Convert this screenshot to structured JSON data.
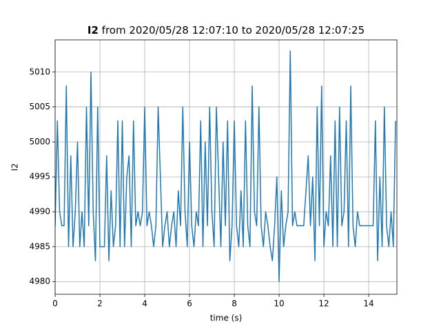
{
  "chart_data": {
    "type": "line",
    "title": {
      "bold": "I2",
      "rest": "from 2020/05/28 12:07:10 to 2020/05/28 12:07:25"
    },
    "xlabel": "time (s)",
    "ylabel": "I2",
    "x": [
      0.0,
      0.1,
      0.2,
      0.3,
      0.4,
      0.5,
      0.6,
      0.7,
      0.8,
      0.9,
      1.0,
      1.1,
      1.2,
      1.3,
      1.4,
      1.5,
      1.6,
      1.7,
      1.8,
      1.9,
      2.0,
      2.1,
      2.2,
      2.3,
      2.4,
      2.5,
      2.6,
      2.7,
      2.8,
      2.9,
      3.0,
      3.1,
      3.2,
      3.3,
      3.4,
      3.5,
      3.6,
      3.7,
      3.8,
      3.9,
      4.0,
      4.1,
      4.2,
      4.3,
      4.4,
      4.5,
      4.6,
      4.7,
      4.8,
      4.9,
      5.0,
      5.1,
      5.2,
      5.3,
      5.4,
      5.5,
      5.6,
      5.7,
      5.8,
      5.9,
      6.0,
      6.1,
      6.2,
      6.3,
      6.4,
      6.5,
      6.6,
      6.7,
      6.8,
      6.9,
      7.0,
      7.1,
      7.2,
      7.3,
      7.4,
      7.5,
      7.6,
      7.7,
      7.8,
      7.9,
      8.0,
      8.1,
      8.2,
      8.3,
      8.4,
      8.5,
      8.6,
      8.7,
      8.8,
      8.9,
      9.0,
      9.1,
      9.2,
      9.3,
      9.4,
      9.5,
      9.6,
      9.7,
      9.8,
      9.9,
      10.0,
      10.1,
      10.2,
      10.3,
      10.4,
      10.5,
      10.6,
      10.7,
      10.8,
      10.9,
      11.0,
      11.1,
      11.2,
      11.3,
      11.4,
      11.5,
      11.6,
      11.7,
      11.8,
      11.9,
      12.0,
      12.1,
      12.2,
      12.3,
      12.4,
      12.5,
      12.6,
      12.7,
      12.8,
      12.9,
      13.0,
      13.1,
      13.2,
      13.3,
      13.4,
      13.5,
      13.6,
      13.7,
      13.8,
      13.9,
      14.0,
      14.1,
      14.2,
      14.3,
      14.4,
      14.5,
      14.6,
      14.7,
      14.8,
      14.9,
      15.0,
      15.1,
      15.2
    ],
    "values": [
      4988,
      5003,
      4990,
      4988,
      4988,
      5008,
      4985,
      4998,
      4985,
      4990,
      5000,
      4985,
      4990,
      4985,
      5005,
      4988,
      5010,
      4990,
      4983,
      5005,
      4985,
      4985,
      4985,
      4998,
      4983,
      4993,
      4985,
      4988,
      5003,
      4985,
      5003,
      4985,
      4995,
      4998,
      4985,
      5003,
      4988,
      4990,
      4988,
      4990,
      5005,
      4988,
      4990,
      4988,
      4985,
      4988,
      5005,
      4995,
      4985,
      4988,
      4990,
      4985,
      4988,
      4990,
      4985,
      4993,
      4988,
      5005,
      4990,
      4985,
      5000,
      4988,
      4985,
      4990,
      4988,
      5003,
      4985,
      5000,
      4988,
      5005,
      4990,
      4985,
      5005,
      4995,
      4985,
      5000,
      4988,
      5003,
      4983,
      4988,
      5003,
      4988,
      4985,
      4993,
      4985,
      5003,
      4988,
      4985,
      5008,
      4990,
      4988,
      5005,
      4988,
      4985,
      4990,
      4988,
      4985,
      4983,
      4988,
      4995,
      4980,
      4993,
      4985,
      4988,
      4990,
      5013,
      4988,
      4990,
      4988,
      4988,
      4988,
      4988,
      4993,
      4998,
      4988,
      4995,
      4983,
      5005,
      4988,
      5008,
      4985,
      4990,
      4988,
      4998,
      4985,
      5003,
      4985,
      5005,
      4988,
      4990,
      5003,
      4985,
      5008,
      4988,
      4985,
      4990,
      4988,
      4988,
      4988,
      4988,
      4988,
      4988,
      4988,
      5003,
      4983,
      4995,
      4985,
      5005,
      4988,
      4985,
      4990,
      4985,
      5003
    ],
    "color": "#1f77b4",
    "xlim": [
      0,
      15.26
    ],
    "ylim": [
      4978.2,
      5014.6
    ],
    "xticks": [
      0,
      2,
      4,
      6,
      8,
      10,
      12,
      14
    ],
    "yticks": [
      4980,
      4985,
      4990,
      4995,
      5000,
      5005,
      5010
    ],
    "grid": true
  }
}
